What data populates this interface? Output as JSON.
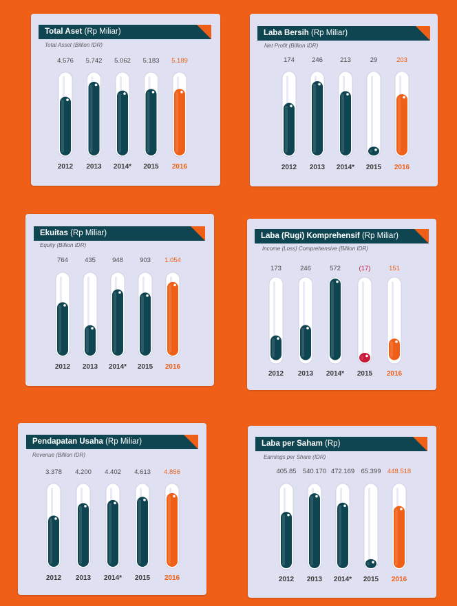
{
  "colors": {
    "background": "#ef5f17",
    "card": "#dfe0f1",
    "header": "#0f4451",
    "bar": "#0f4451",
    "highlight": "#ef5f17",
    "negative": "#c81b3a"
  },
  "chart_data": [
    {
      "type": "bar",
      "title_bold": "Total Aset",
      "title_unit": " (Rp Miliar)",
      "subtitle": "Total Asset (Billion IDR)",
      "categories": [
        "2012",
        "2013",
        "2014*",
        "2015",
        "2016"
      ],
      "values": [
        4576,
        5742,
        5062,
        5183,
        5189
      ],
      "value_labels": [
        "4.576",
        "5.742",
        "5.062",
        "5.183",
        "5.189"
      ],
      "highlight_index": 4
    },
    {
      "type": "bar",
      "title_bold": "Laba Bersih",
      "title_unit": " (Rp Miliar)",
      "subtitle": "Net Profit (Billion IDR)",
      "categories": [
        "2012",
        "2013",
        "2014*",
        "2015",
        "2016"
      ],
      "values": [
        174,
        246,
        213,
        29,
        203
      ],
      "value_labels": [
        "174",
        "246",
        "213",
        "29",
        "203"
      ],
      "highlight_index": 4
    },
    {
      "type": "bar",
      "title_bold": "Ekuitas",
      "title_unit": " (Rp Miliar)",
      "subtitle": "Equity (Billion IDR)",
      "categories": [
        "2012",
        "2013",
        "2014*",
        "2015",
        "2016"
      ],
      "values": [
        764,
        435,
        948,
        903,
        1054
      ],
      "value_labels": [
        "764",
        "435",
        "948",
        "903",
        "1.054"
      ],
      "highlight_index": 4
    },
    {
      "type": "bar",
      "title_bold": "Laba (Rugi) Komprehensif",
      "title_unit": " (Rp Miliar)",
      "subtitle": "Income (Loss) Comprehensive (Billion IDR)",
      "categories": [
        "2012",
        "2013",
        "2014*",
        "2015",
        "2016"
      ],
      "values": [
        173,
        246,
        572,
        -17,
        151
      ],
      "value_labels": [
        "173",
        "246",
        "572",
        "(17)",
        "151"
      ],
      "highlight_index": 4
    },
    {
      "type": "bar",
      "title_bold": "Pendapatan Usaha",
      "title_unit": " (Rp Miliar)",
      "subtitle": "Revenue (Billion IDR)",
      "categories": [
        "2012",
        "2013",
        "2014*",
        "2015",
        "2016"
      ],
      "values": [
        3378,
        4200,
        4402,
        4613,
        4856
      ],
      "value_labels": [
        "3.378",
        "4.200",
        "4.402",
        "4.613",
        "4.856"
      ],
      "highlight_index": 4
    },
    {
      "type": "bar",
      "title_bold": "Laba per Saham",
      "title_unit": " (Rp)",
      "subtitle": "Earnings  per Share (IDR)",
      "categories": [
        "2012",
        "2013",
        "2014*",
        "2015",
        "2016"
      ],
      "values": [
        405.85,
        540.17,
        472.169,
        65.399,
        448.518
      ],
      "value_labels": [
        "405.85",
        "540.170",
        "472.169",
        "65.399",
        "448.518"
      ],
      "highlight_index": 4
    }
  ]
}
